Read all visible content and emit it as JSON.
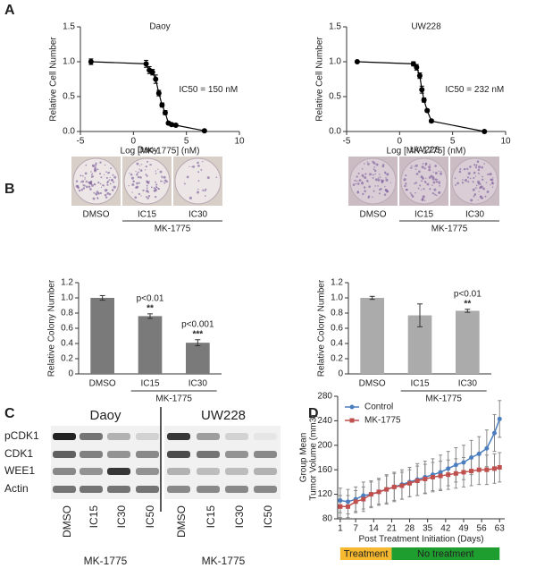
{
  "panels": [
    "A",
    "B",
    "C",
    "D"
  ],
  "chart_data": [
    {
      "type": "scatter",
      "title": "Daoy",
      "annotation": "IC50 = 150 nM",
      "x_label": "Log [MK-1775] (nM)",
      "y_label": "Relative Cell Number",
      "x": [
        -4,
        1.2,
        1.5,
        1.8,
        2.1,
        2.4,
        2.7,
        3.0,
        3.3,
        3.6,
        4.0,
        6.7
      ],
      "values": [
        1.0,
        0.97,
        0.88,
        0.85,
        0.75,
        0.55,
        0.38,
        0.27,
        0.12,
        0.1,
        0.09,
        0.01
      ],
      "errors": [
        0.04,
        0.05,
        0.05,
        0.04,
        0.06,
        0.04,
        0.03,
        0.03,
        0.02,
        0.02,
        0.02,
        0.01
      ],
      "color": "#000000",
      "xlim": [
        -5,
        10
      ],
      "xticks": [
        -5,
        0,
        5,
        10
      ],
      "ylim": [
        0,
        1.5
      ],
      "yticks": [
        {
          "value": 0,
          "label": "0.0"
        },
        0.5,
        {
          "value": 1,
          "label": "1.0"
        },
        1.5
      ]
    },
    {
      "type": "scatter",
      "title": "UW228",
      "annotation": "IC50 = 232 nM",
      "x_label": "Log [MK-1775] (nM)",
      "y_label": "Relative Cell Number",
      "x": [
        -4,
        1.3,
        1.6,
        1.9,
        2.1,
        2.3,
        2.6,
        3.0,
        8
      ],
      "values": [
        1.0,
        0.97,
        0.92,
        0.8,
        0.6,
        0.45,
        0.3,
        0.15,
        0.0
      ],
      "errors": [
        0.01,
        0.03,
        0.04,
        0.04,
        0.05,
        0.03,
        0.02,
        0.02,
        0.01
      ],
      "color": "#000000",
      "xlim": [
        -5,
        10
      ],
      "xticks": [
        -5,
        0,
        5,
        10
      ],
      "ylim": [
        0,
        1.5
      ],
      "yticks": [
        {
          "value": 0,
          "label": "0.0"
        },
        0.5,
        {
          "value": 1,
          "label": "1.0"
        },
        1.5
      ]
    },
    {
      "type": "bar",
      "y_label": "Relative Colony Number",
      "group_label": "MK-1775",
      "categories": [
        "DMSO",
        "IC15",
        "IC30"
      ],
      "values": [
        1.0,
        0.76,
        0.41
      ],
      "errors": [
        0.03,
        0.03,
        0.04
      ],
      "annotations": [
        null,
        [
          "p<0.01",
          "**"
        ],
        [
          "p<0.001",
          "***"
        ]
      ],
      "color": "#7a7a7a",
      "ylim": [
        0,
        1.2
      ],
      "yticks": [
        0,
        0.2,
        0.4,
        0.6,
        0.8,
        {
          "value": 1,
          "label": "1.0"
        },
        1.2
      ]
    },
    {
      "type": "bar",
      "y_label": "Relative Colony Number",
      "group_label": "MK-1775",
      "categories": [
        "DMSO",
        "IC15",
        "IC30"
      ],
      "values": [
        1.0,
        0.77,
        0.83
      ],
      "errors": [
        0.02,
        0.15,
        0.02
      ],
      "annotations": [
        null,
        null,
        [
          "p<0.01",
          "**"
        ]
      ],
      "color": "#ababab",
      "ylim": [
        0,
        1.2
      ],
      "yticks": [
        0,
        0.2,
        0.4,
        0.6,
        0.8,
        {
          "value": 1,
          "label": "1.0"
        },
        1.2
      ]
    },
    {
      "type": "line",
      "x_label": "Post Treatment Initiation (Days)",
      "y_label": [
        "Group Mean",
        "Tumor Volume (mm3)"
      ],
      "x": [
        1,
        4,
        7,
        10,
        13,
        16,
        19,
        22,
        25,
        28,
        31,
        34,
        37,
        40,
        43,
        46,
        49,
        52,
        55,
        58,
        61,
        63
      ],
      "series": [
        {
          "name": "Control",
          "color": "#4a7ebf",
          "marker": "circle",
          "values": [
            110,
            108,
            112,
            118,
            120,
            124,
            128,
            132,
            136,
            140,
            144,
            148,
            152,
            156,
            162,
            168,
            172,
            180,
            186,
            195,
            220,
            243
          ],
          "errors": [
            20,
            20,
            20,
            22,
            22,
            22,
            24,
            24,
            24,
            24,
            26,
            26,
            26,
            28,
            28,
            28,
            28,
            28,
            28,
            30,
            30,
            30
          ]
        },
        {
          "name": "MK-1775",
          "color": "#c0504d",
          "marker": "square",
          "values": [
            100,
            100,
            108,
            112,
            120,
            124,
            128,
            132,
            134,
            138,
            142,
            145,
            148,
            150,
            152,
            154,
            156,
            158,
            160,
            160,
            162,
            164
          ],
          "errors": [
            18,
            18,
            18,
            20,
            20,
            20,
            22,
            22,
            22,
            22,
            24,
            24,
            24,
            24,
            24,
            24,
            24,
            24,
            24,
            24,
            24,
            24
          ]
        }
      ],
      "legend": "upper left",
      "phases": [
        {
          "label": "Treatment",
          "start": 1,
          "end": 21,
          "color": "#f5b82e"
        },
        {
          "label": "No treatment",
          "start": 21,
          "end": 63,
          "color": "#1e9e2e"
        }
      ],
      "xlim": [
        0,
        65
      ],
      "xticks": [
        1,
        7,
        14,
        21,
        28,
        35,
        42,
        49,
        56,
        63
      ],
      "ylim": [
        80,
        280
      ],
      "yticks": [
        80,
        120,
        160,
        200,
        240,
        280
      ]
    }
  ],
  "photo_panels": [
    {
      "title": "Daoy",
      "lanes": [
        "DMSO",
        "IC15",
        "IC30"
      ],
      "group": "MK-1775"
    },
    {
      "title": "UW228",
      "lanes": [
        "DMSO",
        "IC15",
        "IC30"
      ],
      "group": "MK-1775"
    }
  ],
  "blot": {
    "rows": [
      "pCDK1",
      "CDK1",
      "WEE1",
      "Actin"
    ],
    "groups": [
      {
        "title": "Daoy",
        "lanes": [
          "DMSO",
          "IC15",
          "IC30",
          "IC50"
        ],
        "treatment": "MK-1775"
      },
      {
        "title": "UW228",
        "lanes": [
          "DMSO",
          "IC15",
          "IC30",
          "IC50"
        ],
        "treatment": "MK-1775"
      }
    ]
  }
}
